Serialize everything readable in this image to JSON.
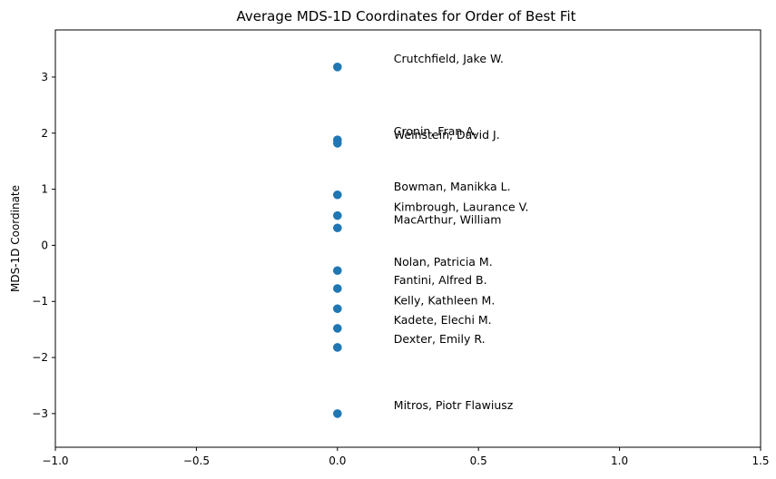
{
  "chart_data": {
    "type": "scatter",
    "title": "Average MDS-1D Coordinates for Order of Best Fit",
    "xlabel": "",
    "ylabel": "MDS-1D Coordinate",
    "xlim": [
      -1.0,
      1.5
    ],
    "ylim": [
      -3.6,
      3.84
    ],
    "grid": false,
    "marker_color": "#1f77b4",
    "xticks": [
      {
        "value": -1.0,
        "label": "−1.0"
      },
      {
        "value": -0.5,
        "label": "−0.5"
      },
      {
        "value": 0.0,
        "label": "0.0"
      },
      {
        "value": 0.5,
        "label": "0.5"
      },
      {
        "value": 1.0,
        "label": "1.0"
      },
      {
        "value": 1.5,
        "label": "1.5"
      }
    ],
    "yticks": [
      {
        "value": -3,
        "label": "−3"
      },
      {
        "value": -2,
        "label": "−2"
      },
      {
        "value": -1,
        "label": "−1"
      },
      {
        "value": 0,
        "label": "0"
      },
      {
        "value": 1,
        "label": "1"
      },
      {
        "value": 2,
        "label": "2"
      },
      {
        "value": 3,
        "label": "3"
      }
    ],
    "points": [
      {
        "x": 0.0,
        "y": 3.18,
        "label": "Crutchfield, Jake W."
      },
      {
        "x": 0.0,
        "y": 1.88,
        "label": "Cronin, Fran A."
      },
      {
        "x": 0.0,
        "y": 1.82,
        "label": "Weinstein, David J."
      },
      {
        "x": 0.0,
        "y": 0.9,
        "label": "Bowman, Manikka L."
      },
      {
        "x": 0.0,
        "y": 0.53,
        "label": "Kimbrough, Laurance V."
      },
      {
        "x": 0.0,
        "y": 0.31,
        "label": "MacArthur, William"
      },
      {
        "x": 0.0,
        "y": -0.45,
        "label": "Nolan, Patricia M."
      },
      {
        "x": 0.0,
        "y": -0.77,
        "label": "Fantini, Alfred B."
      },
      {
        "x": 0.0,
        "y": -1.13,
        "label": "Kelly, Kathleen M."
      },
      {
        "x": 0.0,
        "y": -1.48,
        "label": "Kadete, Elechi M."
      },
      {
        "x": 0.0,
        "y": -1.82,
        "label": "Dexter, Emily R."
      },
      {
        "x": 0.0,
        "y": -3.0,
        "label": "Mitros, Piotr Flawiusz"
      }
    ]
  }
}
